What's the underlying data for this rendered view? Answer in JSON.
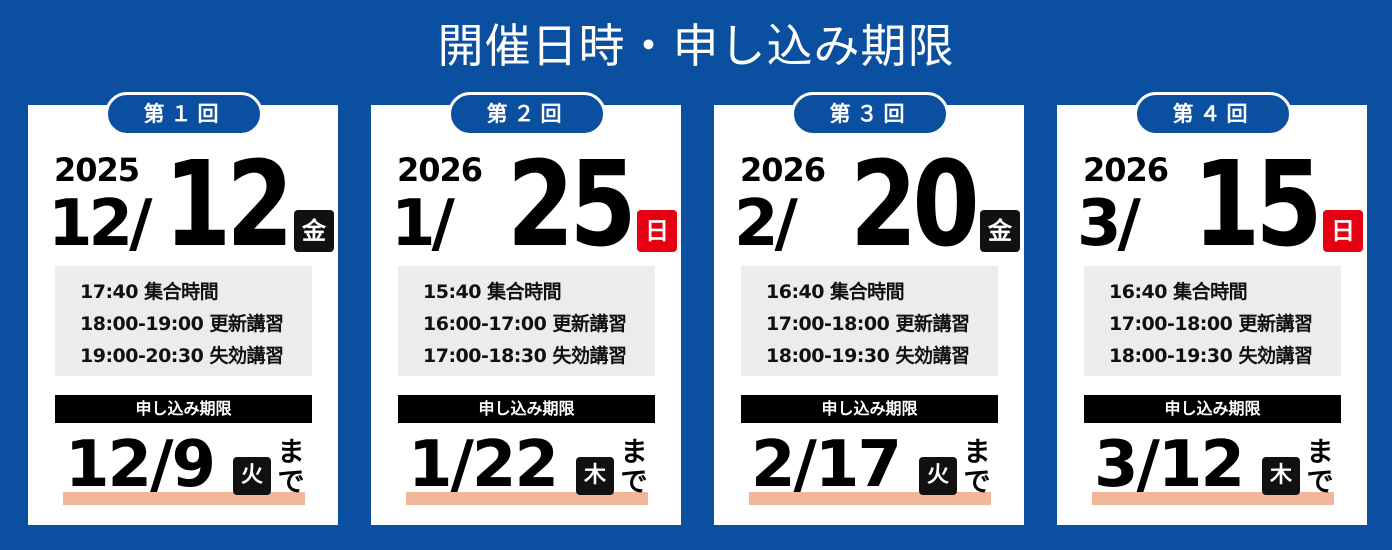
{
  "title": "開催日時・申し込み期限",
  "colors": {
    "background": "#0a4fa0",
    "weekday_black": "#111111",
    "weekday_red": "#e50012",
    "underline": "#f2b79b"
  },
  "sessions": [
    {
      "label": "第１回",
      "year": "2025",
      "month": "12/",
      "day": "12",
      "weekday": "金",
      "weekday_color": "#111111",
      "times": [
        "17:40 集合時間",
        "18:00-19:00 更新講習",
        "19:00-20:30 失効講習"
      ],
      "deadline_label": "申し込み期限",
      "deadline": "12/9",
      "deadline_weekday": "火",
      "deadline_suffix": "まで"
    },
    {
      "label": "第２回",
      "year": "2026",
      "month": "1/",
      "day": "25",
      "weekday": "日",
      "weekday_color": "#e50012",
      "times": [
        "15:40 集合時間",
        "16:00-17:00 更新講習",
        "17:00-18:30 失効講習"
      ],
      "deadline_label": "申し込み期限",
      "deadline": "1/22",
      "deadline_weekday": "木",
      "deadline_suffix": "まで"
    },
    {
      "label": "第３回",
      "year": "2026",
      "month": "2/",
      "day": "20",
      "weekday": "金",
      "weekday_color": "#111111",
      "times": [
        "16:40 集合時間",
        "17:00-18:00 更新講習",
        "18:00-19:30 失効講習"
      ],
      "deadline_label": "申し込み期限",
      "deadline": "2/17",
      "deadline_weekday": "火",
      "deadline_suffix": "まで"
    },
    {
      "label": "第４回",
      "year": "2026",
      "month": "3/",
      "day": "15",
      "weekday": "日",
      "weekday_color": "#e50012",
      "times": [
        "16:40 集合時間",
        "17:00-18:00 更新講習",
        "18:00-19:30 失効講習"
      ],
      "deadline_label": "申し込み期限",
      "deadline": "3/12",
      "deadline_weekday": "木",
      "deadline_suffix": "まで"
    }
  ]
}
